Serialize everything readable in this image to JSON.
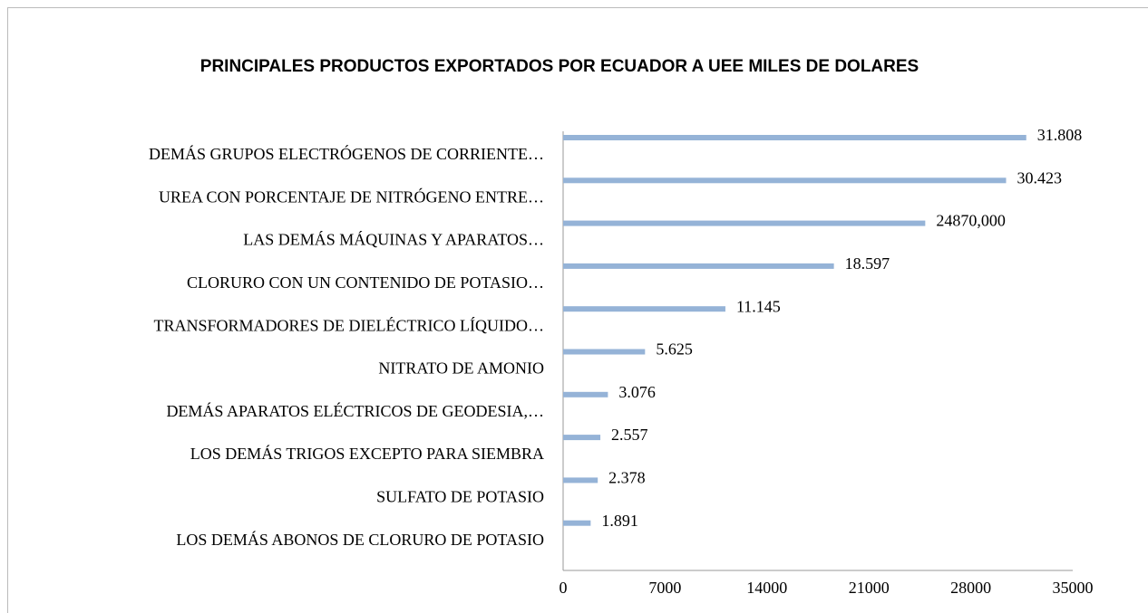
{
  "chart_data": {
    "type": "barh",
    "title": "PRINCIPALES PRODUCTOS EXPORTADOS POR ECUADOR A UEE MILES DE DOLARES",
    "categories": [
      "DEMÁS GRUPOS ELECTRÓGENOS DE CORRIENTE…",
      "UREA CON PORCENTAJE DE NITRÓGENO ENTRE…",
      "LAS DEMÁS MÁQUINAS Y APARATOS…",
      "CLORURO CON UN CONTENIDO DE POTASIO…",
      "TRANSFORMADORES DE DIELÉCTRICO LÍQUIDO…",
      "NITRATO DE AMONIO",
      "DEMÁS APARATOS ELÉCTRICOS DE GEODESIA,…",
      "LOS DEMÁS TRIGOS EXCEPTO PARA SIEMBRA",
      "SULFATO DE POTASIO",
      "LOS DEMÁS ABONOS DE CLORURO DE POTASIO"
    ],
    "values": [
      31808,
      30423,
      24870,
      18597,
      11145,
      5625,
      3076,
      2557,
      2378,
      1891
    ],
    "value_labels": [
      "31.808",
      "30.423",
      "24870,000",
      "18.597",
      "11.145",
      "5.625",
      "3.076",
      "2.557",
      "2.378",
      "1.891"
    ],
    "color": "#95b3d7",
    "xlim": [
      0,
      35000
    ],
    "xticks": [
      0,
      7000,
      14000,
      21000,
      28000,
      35000
    ],
    "grid": false
  }
}
